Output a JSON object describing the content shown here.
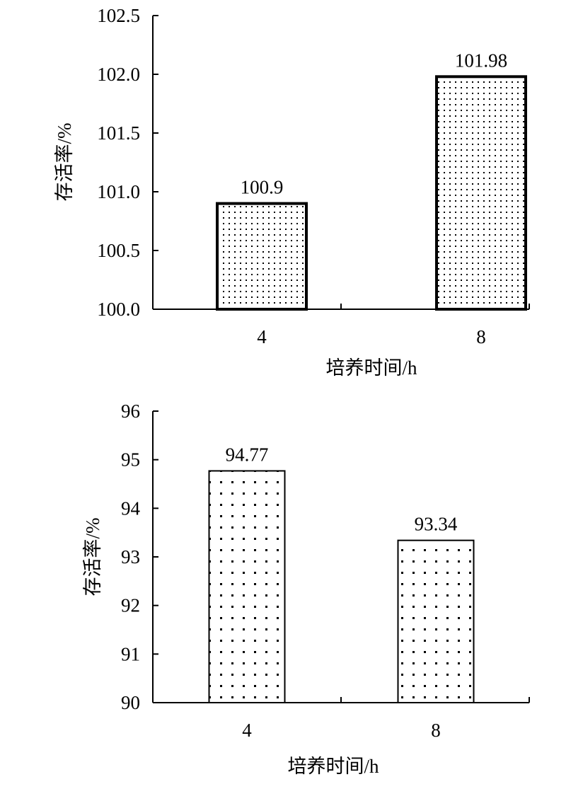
{
  "chart_data": [
    {
      "type": "bar",
      "categories": [
        "4",
        "8"
      ],
      "values": [
        100.9,
        101.98
      ],
      "data_labels": [
        "100.9",
        "101.98"
      ],
      "xlabel": "培养时间/h",
      "ylabel": "存活率/%",
      "ylim": [
        100.0,
        102.5
      ],
      "yticks": [
        "100.0",
        "100.5",
        "101.0",
        "101.5",
        "102.0",
        "102.5"
      ],
      "grid": false,
      "bar_fill": "fine-dot-pattern"
    },
    {
      "type": "bar",
      "categories": [
        "4",
        "8"
      ],
      "values": [
        94.77,
        93.34
      ],
      "data_labels": [
        "94.77",
        "93.34"
      ],
      "xlabel": "培养时间/h",
      "ylabel": "存活率/%",
      "ylim": [
        90,
        96
      ],
      "yticks": [
        "90",
        "91",
        "92",
        "93",
        "94",
        "95",
        "96"
      ],
      "grid": false,
      "bar_fill": "coarse-dot-pattern"
    }
  ]
}
